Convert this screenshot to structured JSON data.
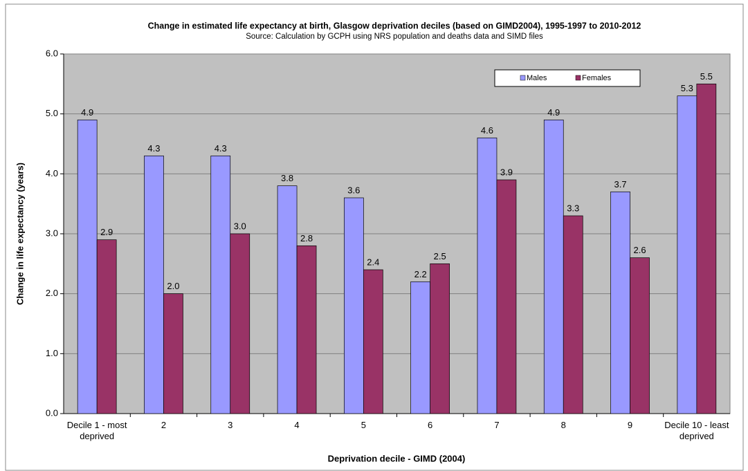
{
  "chart_data": {
    "type": "bar",
    "title": "Change in estimated life expectancy at birth, Glasgow deprivation deciles (based on GIMD2004), 1995-1997 to 2010-2012",
    "subtitle": "Source: Calculation by GCPH using NRS population and deaths data and SIMD files",
    "x_label": "Deprivation decile - GIMD (2004)",
    "y_label": "Change in life expectancy (years)",
    "categories": [
      "Decile 1 - most deprived",
      "2",
      "3",
      "4",
      "5",
      "6",
      "7",
      "8",
      "9",
      "Decile 10 - least deprived"
    ],
    "series": [
      {
        "name": "Males",
        "color": "#9999ff",
        "values": [
          4.9,
          4.3,
          4.3,
          3.8,
          3.6,
          2.2,
          4.6,
          4.9,
          3.7,
          5.3
        ]
      },
      {
        "name": "Females",
        "color": "#993366",
        "values": [
          2.9,
          2,
          3,
          2.8,
          2.4,
          2.5,
          3.9,
          3.3,
          2.6,
          5.5
        ],
        "value_labels": [
          "2.9",
          "2.0",
          "3.0",
          "2.8",
          "2.4",
          "2.5",
          "3.9",
          "3.3",
          "2.6",
          "5.5"
        ]
      }
    ],
    "ylim": [
      0,
      6
    ],
    "yticks": [
      {
        "value": 0,
        "label": "0.0"
      },
      {
        "value": 1,
        "label": "1.0"
      },
      {
        "value": 2,
        "label": "2.0"
      },
      {
        "value": 3,
        "label": "3.0"
      },
      {
        "value": 4,
        "label": "4.0"
      },
      {
        "value": 5,
        "label": "5.0"
      },
      {
        "value": 6,
        "label": "6.0"
      }
    ],
    "grid": true
  }
}
